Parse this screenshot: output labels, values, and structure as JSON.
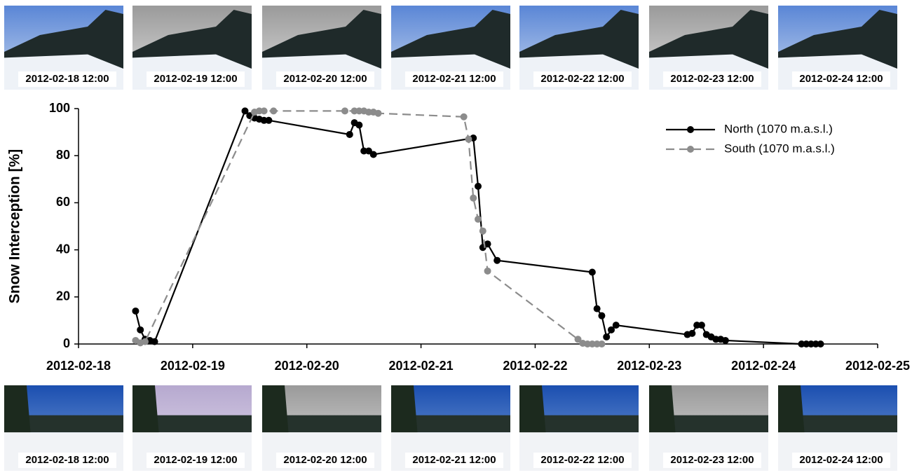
{
  "chart_data": {
    "type": "line",
    "ylabel": "Snow Interception [%]",
    "xlim": [
      "2012-02-18",
      "2012-02-25"
    ],
    "xticks": [
      "2012-02-18",
      "2012-02-19",
      "2012-02-20",
      "2012-02-21",
      "2012-02-22",
      "2012-02-23",
      "2012-02-24",
      "2012-02-25"
    ],
    "ylim": [
      0,
      100
    ],
    "yticks": [
      0,
      20,
      40,
      60,
      80,
      100
    ],
    "grid": false,
    "legend": "upper right",
    "series": [
      {
        "name": "North (1070 m.a.s.l.)",
        "color": "#000000",
        "dash": false,
        "x": [
          "2012-02-18 12:00",
          "2012-02-18 13:00",
          "2012-02-18 14:00",
          "2012-02-18 15:00",
          "2012-02-18 16:00",
          "2012-02-19 11:00",
          "2012-02-19 12:00",
          "2012-02-19 13:00",
          "2012-02-19 14:00",
          "2012-02-19 15:00",
          "2012-02-19 16:00",
          "2012-02-20 09:00",
          "2012-02-20 10:00",
          "2012-02-20 11:00",
          "2012-02-20 12:00",
          "2012-02-20 13:00",
          "2012-02-20 14:00",
          "2012-02-21 11:00",
          "2012-02-21 12:00",
          "2012-02-21 13:00",
          "2012-02-21 14:00",
          "2012-02-21 16:00",
          "2012-02-22 12:00",
          "2012-02-22 13:00",
          "2012-02-22 14:00",
          "2012-02-22 15:00",
          "2012-02-22 16:00",
          "2012-02-22 17:00",
          "2012-02-23 08:00",
          "2012-02-23 09:00",
          "2012-02-23 10:00",
          "2012-02-23 11:00",
          "2012-02-23 12:00",
          "2012-02-23 13:00",
          "2012-02-23 14:00",
          "2012-02-23 15:00",
          "2012-02-23 16:00",
          "2012-02-24 08:00",
          "2012-02-24 09:00",
          "2012-02-24 10:00",
          "2012-02-24 11:00",
          "2012-02-24 12:00"
        ],
        "values": [
          14,
          6,
          2,
          1.5,
          1,
          99,
          97,
          96,
          95.5,
          95,
          95,
          89,
          94,
          93,
          82,
          82,
          80.5,
          87.5,
          67,
          41,
          42.5,
          35.5,
          30.5,
          15,
          12,
          3,
          6,
          8,
          4,
          4.5,
          8,
          8,
          4,
          3,
          2,
          2,
          1.5,
          0,
          0,
          0,
          0,
          0
        ]
      },
      {
        "name": "South (1070 m.a.s.l.)",
        "color": "#8c8c8c",
        "dash": true,
        "x": [
          "2012-02-18 12:00",
          "2012-02-18 13:00",
          "2012-02-18 14:00",
          "2012-02-19 13:00",
          "2012-02-19 14:00",
          "2012-02-19 15:00",
          "2012-02-19 17:00",
          "2012-02-20 08:00",
          "2012-02-20 10:00",
          "2012-02-20 11:00",
          "2012-02-20 12:00",
          "2012-02-20 13:00",
          "2012-02-20 14:00",
          "2012-02-20 15:00",
          "2012-02-21 09:00",
          "2012-02-21 10:00",
          "2012-02-21 11:00",
          "2012-02-21 12:00",
          "2012-02-21 13:00",
          "2012-02-21 14:00",
          "2012-02-22 09:00",
          "2012-02-22 10:00",
          "2012-02-22 11:00",
          "2012-02-22 12:00",
          "2012-02-22 13:00",
          "2012-02-22 14:00"
        ],
        "values": [
          1.5,
          0.5,
          1,
          98.5,
          99,
          99,
          99,
          99,
          99,
          99,
          99,
          98.5,
          98.5,
          98,
          96.5,
          87,
          62,
          53,
          48,
          31,
          2,
          0.3,
          0,
          0,
          0,
          0
        ]
      }
    ]
  },
  "photos": {
    "top": [
      "2012-02-18 12:00",
      "2012-02-19 12:00",
      "2012-02-20 12:00",
      "2012-02-21 12:00",
      "2012-02-22 12:00",
      "2012-02-23 12:00",
      "2012-02-24 12:00"
    ],
    "bottom": [
      "2012-02-18 12:00",
      "2012-02-19 12:00",
      "2012-02-20 12:00",
      "2012-02-21 12:00",
      "2012-02-22 12:00",
      "2012-02-23 12:00",
      "2012-02-24 12:00"
    ]
  }
}
